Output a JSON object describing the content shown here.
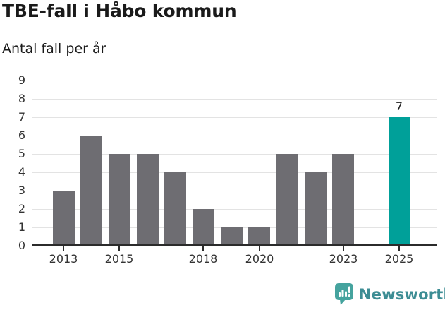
{
  "header": {
    "note": ""
  },
  "chart_data": {
    "type": "bar",
    "title": "TBE-fall i Håbo kommun",
    "subtitle": "Antal fall per år",
    "xlabel": "",
    "ylabel": "Antal fall per år",
    "categories": [
      "2013",
      "2014",
      "2015",
      "2016",
      "2017",
      "2018",
      "2019",
      "2020",
      "2021",
      "2022",
      "2023",
      "2024",
      "2025"
    ],
    "values": [
      3,
      6,
      5,
      5,
      4,
      2,
      1,
      1,
      5,
      4,
      5,
      0,
      7
    ],
    "xticks": [
      "2013",
      "2015",
      "2018",
      "2020",
      "2023",
      "2025"
    ],
    "yticks": [
      0,
      1,
      2,
      3,
      4,
      5,
      6,
      7,
      8,
      9
    ],
    "ylim": [
      0,
      9
    ],
    "grid": true,
    "legend_position": "none",
    "bar_color": "#6e6d72",
    "highlight": {
      "category": "2025",
      "color": "#00a099",
      "data_label": "7"
    },
    "gridline_color": "#e3e3e3",
    "axis_color": "#2b2b2b",
    "tick_label_color": "#333333",
    "title_color": "#1a1a1a"
  },
  "footer": {
    "brand": "Newsworthy",
    "logo_icon": "newsworthy-speech-bubble-bar-chart-icon",
    "icon_color": "#45a39e",
    "brand_color": "#3d8d94"
  }
}
